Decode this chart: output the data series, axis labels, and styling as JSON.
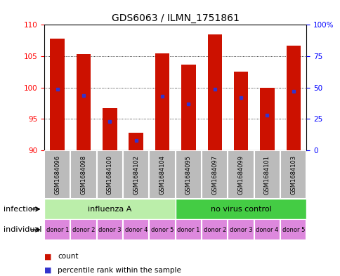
{
  "title": "GDS6063 / ILMN_1751861",
  "samples": [
    "GSM1684096",
    "GSM1684098",
    "GSM1684100",
    "GSM1684102",
    "GSM1684104",
    "GSM1684095",
    "GSM1684097",
    "GSM1684099",
    "GSM1684101",
    "GSM1684103"
  ],
  "counts": [
    107.8,
    105.3,
    96.7,
    92.8,
    105.5,
    103.7,
    108.5,
    102.5,
    100.0,
    106.7
  ],
  "percentiles": [
    49,
    44,
    23,
    8,
    43,
    37,
    49,
    42,
    28,
    47
  ],
  "ylim_left": [
    90,
    110
  ],
  "yticks_left": [
    90,
    95,
    100,
    105,
    110
  ],
  "ylim_right": [
    0,
    100
  ],
  "yticks_right": [
    0,
    25,
    50,
    75,
    100
  ],
  "bar_color": "#cc1100",
  "percentile_color": "#3333cc",
  "infection_groups": [
    {
      "label": "influenza A",
      "start": 0,
      "end": 5,
      "color": "#bbeeaa"
    },
    {
      "label": "no virus control",
      "start": 5,
      "end": 10,
      "color": "#44cc44"
    }
  ],
  "individual_labels": [
    "donor 1",
    "donor 2",
    "donor 3",
    "donor 4",
    "donor 5",
    "donor 1",
    "donor 2",
    "donor 3",
    "donor 4",
    "donor 5"
  ],
  "individual_color": "#dd88dd",
  "sample_bg_color": "#bbbbbb",
  "legend_count_color": "#cc1100",
  "legend_percentile_color": "#3333cc",
  "infection_label": "infection",
  "individual_label": "individual",
  "title_fontsize": 10,
  "tick_fontsize": 7.5,
  "label_fontsize": 8,
  "donor_fontsize": 6,
  "sample_fontsize": 6
}
